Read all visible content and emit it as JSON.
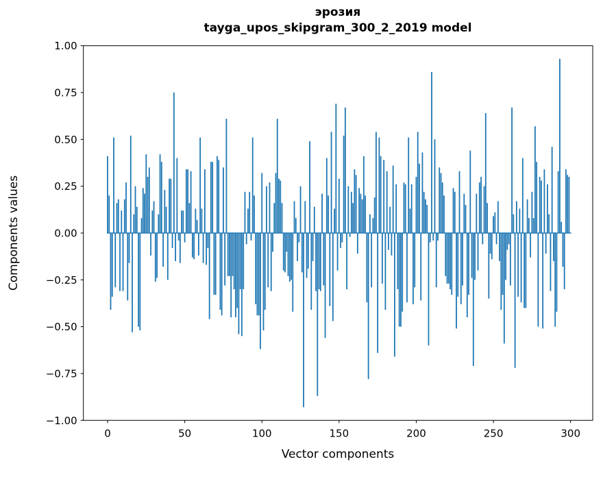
{
  "figure": {
    "title_line1": "эрозия",
    "title_line2": "tayga_upos_skipgram_300_2_2019 model",
    "xlabel": "Vector components",
    "ylabel": "Components values"
  },
  "chart_data": {
    "type": "bar",
    "title": "эрозия — tayga_upos_skipgram_300_2_2019 model",
    "xlabel": "Vector components",
    "ylabel": "Components values",
    "bar_color": "#1f77b4",
    "n_bars": 300,
    "ylim": [
      -1.0,
      1.0
    ],
    "xlim": [
      -16,
      315
    ],
    "grid": false,
    "legend": false,
    "xticks": [
      0,
      50,
      100,
      150,
      200,
      250,
      300
    ],
    "xtick_labels": [
      "0",
      "50",
      "100",
      "150",
      "200",
      "250",
      "300"
    ],
    "yticks": [
      -1.0,
      -0.75,
      -0.5,
      -0.25,
      0.0,
      0.25,
      0.5,
      0.75,
      1.0
    ],
    "ytick_labels": [
      "−1.00",
      "−0.75",
      "−0.50",
      "−0.25",
      "0.00",
      "0.25",
      "0.50",
      "0.75",
      "1.00"
    ],
    "values": [
      0.41,
      0.2,
      -0.41,
      -0.34,
      0.51,
      -0.29,
      0.16,
      0.18,
      -0.31,
      0.12,
      -0.31,
      0.18,
      0.27,
      -0.36,
      -0.16,
      0.52,
      -0.53,
      0.1,
      0.25,
      0.14,
      -0.5,
      -0.52,
      0.08,
      0.24,
      0.21,
      0.42,
      0.3,
      0.35,
      -0.12,
      0.12,
      0.17,
      -0.26,
      -0.24,
      0.1,
      0.42,
      0.38,
      -0.18,
      0.23,
      0.14,
      -0.25,
      0.29,
      0.29,
      -0.08,
      0.75,
      -0.15,
      0.4,
      -0.04,
      -0.16,
      0.12,
      0.12,
      -0.05,
      0.34,
      0.34,
      0.16,
      0.33,
      -0.13,
      -0.14,
      0.13,
      0.07,
      -0.12,
      0.51,
      0.13,
      -0.16,
      0.34,
      -0.17,
      -0.08,
      -0.46,
      0.38,
      0.38,
      -0.33,
      -0.33,
      0.41,
      0.39,
      -0.41,
      -0.44,
      0.35,
      -0.28,
      0.61,
      -0.23,
      -0.23,
      -0.45,
      -0.23,
      -0.3,
      -0.45,
      -0.4,
      -0.54,
      -0.3,
      -0.55,
      -0.3,
      0.22,
      -0.06,
      0.13,
      0.22,
      -0.04,
      0.51,
      0.2,
      -0.38,
      -0.44,
      -0.44,
      -0.62,
      0.32,
      -0.52,
      -0.41,
      0.25,
      -0.29,
      0.27,
      -0.31,
      -0.1,
      0.16,
      0.32,
      0.61,
      0.29,
      0.28,
      0.16,
      -0.2,
      -0.21,
      -0.1,
      -0.23,
      -0.26,
      -0.25,
      -0.42,
      0.17,
      0.08,
      -0.15,
      -0.05,
      0.25,
      -0.21,
      -0.93,
      0.17,
      -0.24,
      -0.19,
      0.49,
      -0.41,
      -0.15,
      0.14,
      -0.31,
      -0.87,
      -0.3,
      -0.31,
      0.21,
      -0.28,
      -0.56,
      0.4,
      0.2,
      -0.39,
      0.54,
      -0.47,
      0.13,
      0.69,
      -0.2,
      0.29,
      -0.08,
      -0.05,
      0.52,
      0.67,
      -0.3,
      0.25,
      -0.02,
      0.22,
      0.16,
      0.34,
      0.31,
      -0.11,
      0.24,
      0.21,
      0.18,
      0.41,
      0.2,
      -0.37,
      -0.78,
      0.1,
      -0.29,
      0.08,
      0.19,
      0.54,
      -0.64,
      0.51,
      0.41,
      -0.27,
      0.39,
      -0.41,
      0.33,
      -0.09,
      0.14,
      -0.12,
      0.36,
      -0.66,
      0.26,
      -0.3,
      -0.5,
      -0.5,
      -0.42,
      0.27,
      0.26,
      -0.37,
      0.51,
      0.13,
      0.26,
      -0.38,
      -0.29,
      0.3,
      0.54,
      0.37,
      -0.36,
      0.43,
      0.22,
      0.18,
      0.15,
      -0.6,
      -0.05,
      0.86,
      -0.04,
      0.5,
      -0.29,
      -0.04,
      0.35,
      0.32,
      0.27,
      0.2,
      -0.23,
      -0.27,
      -0.27,
      -0.3,
      -0.33,
      0.24,
      0.22,
      -0.51,
      -0.34,
      0.33,
      -0.38,
      -0.28,
      0.21,
      0.15,
      -0.45,
      -0.33,
      0.44,
      -0.24,
      -0.71,
      -0.25,
      0.21,
      -0.2,
      0.27,
      0.3,
      -0.06,
      0.25,
      0.64,
      0.16,
      -0.35,
      -0.11,
      -0.14,
      0.09,
      0.11,
      -0.06,
      0.17,
      -0.15,
      -0.41,
      -0.33,
      -0.59,
      -0.25,
      -0.09,
      -0.06,
      -0.28,
      0.67,
      0.1,
      -0.72,
      0.17,
      -0.34,
      0.13,
      -0.37,
      0.4,
      -0.4,
      -0.4,
      0.18,
      0.08,
      -0.13,
      0.22,
      0.08,
      0.57,
      0.38,
      -0.5,
      0.3,
      0.28,
      -0.51,
      0.34,
      -0.11,
      0.26,
      0.1,
      -0.31,
      0.46,
      -0.15,
      -0.5,
      -0.42,
      0.33,
      0.93,
      0.06,
      -0.18,
      -0.3,
      0.34,
      0.31,
      0.3
    ]
  }
}
